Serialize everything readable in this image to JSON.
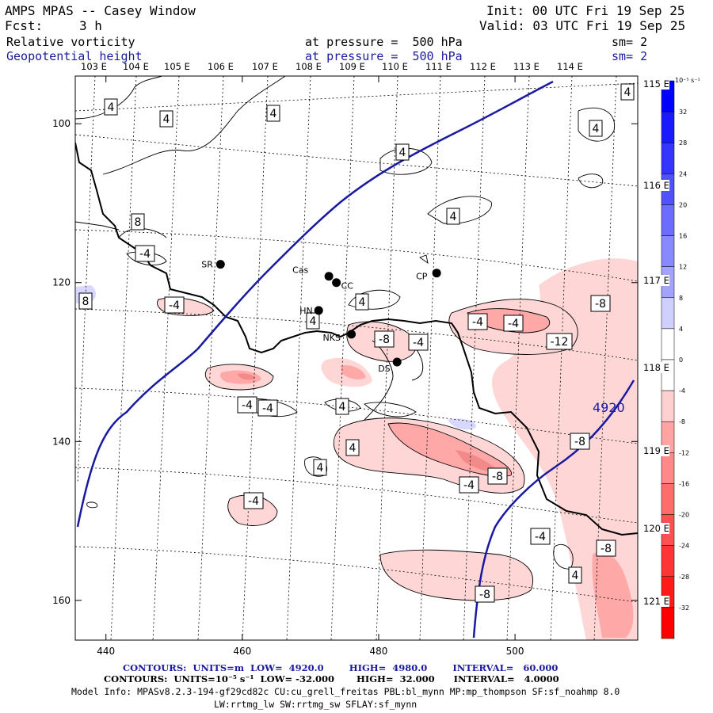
{
  "header": {
    "title": "AMPS MPAS -- Casey Window",
    "init": "Init: 00 UTC Fri 19 Sep 25",
    "fcst_label": "Fcst:",
    "fcst_value": "3 h",
    "valid": "Valid: 03 UTC Fri 19 Sep 25",
    "field1_name": "Relative vorticity",
    "field1_level": "at pressure =  500 hPa",
    "field1_sm": "sm= 2",
    "field2_name": "Geopotential height",
    "field2_level": "at pressure =  500 hPa",
    "field2_sm": "sm= 2"
  },
  "colors": {
    "height_contour": "#1a1aa0",
    "coast": "#000000"
  },
  "chart_data": {
    "type": "heatmap",
    "x_axis": {
      "range": [
        435.5,
        518
      ],
      "ticks": [
        440,
        460,
        480,
        500
      ]
    },
    "y_axis": {
      "range": [
        94,
        165
      ],
      "inverted": true,
      "ticks": [
        100,
        120,
        140,
        160
      ]
    },
    "longitude_labels": [
      "103 E",
      "104 E",
      "105 E",
      "106 E",
      "107 E",
      "108 E",
      "109 E",
      "110 E",
      "111 E",
      "112 E",
      "113 E",
      "114 E"
    ],
    "latitude_edge_labels": [
      "115 E",
      "116 E",
      "117 E",
      "118 E",
      "119 E",
      "120 E",
      "121 E"
    ],
    "colorbar": {
      "unit": "10⁻⁵ s⁻¹",
      "labels": [
        "32",
        "28",
        "24",
        "20",
        "16",
        "12",
        "8",
        "4",
        "0",
        "-4",
        "-8",
        "-12",
        "-16",
        "-20",
        "-24",
        "-28",
        "-32"
      ],
      "colors": [
        "#0000ff",
        "#1a1aff",
        "#3535ff",
        "#5151ff",
        "#6c6cff",
        "#8888ff",
        "#a3a3ff",
        "#d0d0ff",
        "#ffffff",
        "#ffffff",
        "#ffd0d0",
        "#ffa3a3",
        "#ff8888",
        "#ff6c6c",
        "#ff5151",
        "#ff3535",
        "#ff1a1a",
        "#ff0000"
      ]
    },
    "height_contour_label": "4920",
    "vorticity_contour_labels": [
      "4",
      "4",
      "4",
      "4",
      "4",
      "4",
      "4",
      "-4",
      "8",
      "8",
      "-4",
      "4",
      "4",
      "-8",
      "-4",
      "-4",
      "-8",
      "-12",
      "-4",
      "-4",
      "4",
      "4",
      "4",
      "-8",
      "-8",
      "-4",
      "-8",
      "-4",
      "4",
      "-8",
      "-4",
      "-4"
    ],
    "stations": [
      {
        "name": "SR",
        "x": 456.8,
        "y": 117.7
      },
      {
        "name": "Cas",
        "x": 472.7,
        "y": 119.2
      },
      {
        "name": "CC",
        "x": 473.8,
        "y": 120.0
      },
      {
        "name": "CP",
        "x": 488.5,
        "y": 118.8
      },
      {
        "name": "HN",
        "x": 471.2,
        "y": 123.5
      },
      {
        "name": "NKS",
        "x": 476.0,
        "y": 126.5
      },
      {
        "name": "DS",
        "x": 482.7,
        "y": 130.0
      }
    ]
  },
  "footer": {
    "line1": "CONTOURS:  UNITS=m  LOW=  4920.0        HIGH=  4980.0        INTERVAL=   60.000",
    "line2": "CONTOURS:  UNITS=10⁻⁵ s⁻¹  LOW= -32.000       HIGH=  32.000      INTERVAL=   4.0000",
    "line3": "Model Info: MPASv8.2.3-194-gf29cd82c CU:cu_grell_freitas PBL:bl_mynn MP:mp_thompson SF:sf_noahmp 8.0",
    "line4": "LW:rrtmg_lw SW:rrtmg_sw SFLAY:sf_mynn"
  }
}
